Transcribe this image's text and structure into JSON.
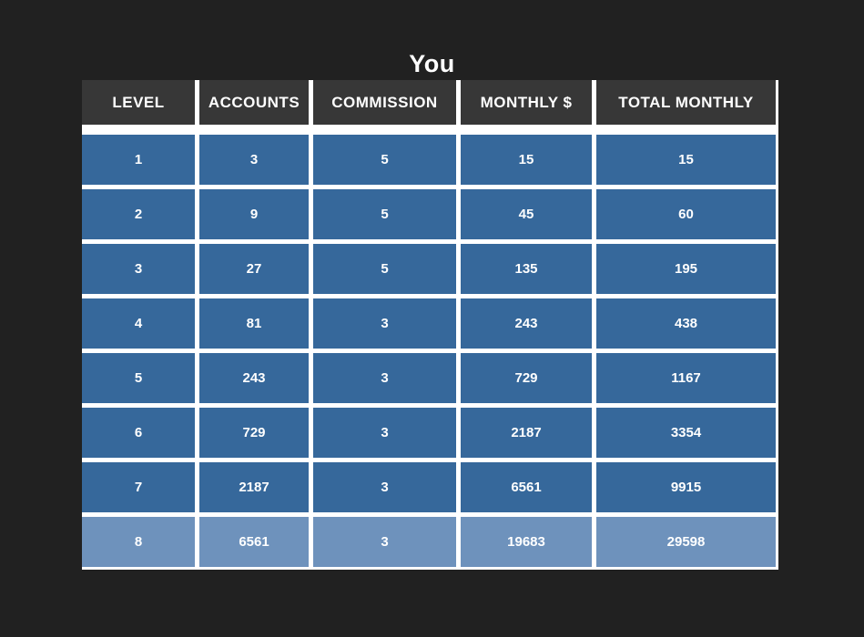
{
  "page": {
    "title": "You"
  },
  "colors": {
    "page_bg": "#212121",
    "header_bg": "#373737",
    "row_bg": "#36689b",
    "last_row_bg": "#6e92bc",
    "grid_line": "#ffffff",
    "text": "#ffffff"
  },
  "table": {
    "columns": [
      "LEVEL",
      "ACCOUNTS",
      "COMMISSION",
      "MONTHLY $",
      "TOTAL MONTHLY"
    ],
    "rows": [
      [
        "1",
        "3",
        "5",
        "15",
        "15"
      ],
      [
        "2",
        "9",
        "5",
        "45",
        "60"
      ],
      [
        "3",
        "27",
        "5",
        "135",
        "195"
      ],
      [
        "4",
        "81",
        "3",
        "243",
        "438"
      ],
      [
        "5",
        "243",
        "3",
        "729",
        "1167"
      ],
      [
        "6",
        "729",
        "3",
        "2187",
        "3354"
      ],
      [
        "7",
        "2187",
        "3",
        "6561",
        "9915"
      ],
      [
        "8",
        "6561",
        "3",
        "19683",
        "29598"
      ]
    ],
    "highlighted_row_index": 7
  },
  "chart_data": {
    "type": "table",
    "title": "You",
    "columns": [
      "LEVEL",
      "ACCOUNTS",
      "COMMISSION",
      "MONTHLY $",
      "TOTAL MONTHLY"
    ],
    "rows": [
      [
        1,
        3,
        5,
        15,
        15
      ],
      [
        2,
        9,
        5,
        45,
        60
      ],
      [
        3,
        27,
        5,
        135,
        195
      ],
      [
        4,
        81,
        3,
        243,
        438
      ],
      [
        5,
        243,
        3,
        729,
        1167
      ],
      [
        6,
        729,
        3,
        2187,
        3354
      ],
      [
        7,
        2187,
        3,
        6561,
        9915
      ],
      [
        8,
        6561,
        3,
        19683,
        29598
      ]
    ],
    "layout_hints": {
      "header_style": "dark-gray",
      "body_style": "steel-blue",
      "last_row_style": "light-steel-blue-highlight",
      "grid": "white gutters between all cells"
    }
  }
}
